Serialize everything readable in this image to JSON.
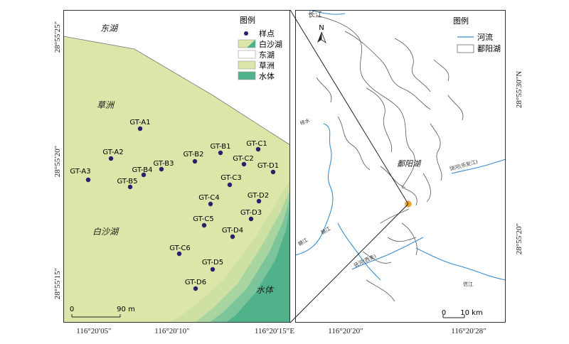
{
  "left_map": {
    "region_labels": {
      "east_lake": "东湖",
      "grass_beach": "草洲",
      "white_sand_lake": "白沙湖",
      "water_body": "水体"
    },
    "legend": {
      "title": "图例",
      "items": [
        {
          "label": "样点",
          "kind": "point",
          "color": "#2a1f6b"
        },
        {
          "label": "白沙湖",
          "kind": "swatch",
          "color": "#cfe0a3"
        },
        {
          "label": "东湖",
          "kind": "swatch",
          "color": "#ffffff"
        },
        {
          "label": "草洲",
          "kind": "swatch",
          "color": "#dbe6a8"
        },
        {
          "label": "水体",
          "kind": "swatch",
          "color": "#4fb28b"
        }
      ]
    },
    "sample_points": [
      {
        "label": "GT-A1"
      },
      {
        "label": "GT-A2"
      },
      {
        "label": "GT-A3"
      },
      {
        "label": "GT-B1"
      },
      {
        "label": "GT-B2"
      },
      {
        "label": "GT-B3"
      },
      {
        "label": "GT-B4"
      },
      {
        "label": "GT-B5"
      },
      {
        "label": "GT-C1"
      },
      {
        "label": "GT-C2"
      },
      {
        "label": "GT-C3"
      },
      {
        "label": "GT-C4"
      },
      {
        "label": "GT-C5"
      },
      {
        "label": "GT-C6"
      },
      {
        "label": "GT-D1"
      },
      {
        "label": "GT-D2"
      },
      {
        "label": "GT-D3"
      },
      {
        "label": "GT-D4"
      },
      {
        "label": "GT-D5"
      },
      {
        "label": "GT-D6"
      }
    ],
    "scale_bar": {
      "zero": "0",
      "length": "90 m"
    },
    "x_ticks": [
      "116°20′05″",
      "116°20′10″",
      "116°20′15″E"
    ],
    "y_ticks": [
      "28°55′25″",
      "28°55′20″",
      "28°55′15″"
    ]
  },
  "right_map": {
    "legend": {
      "title": "图例",
      "river": "河流",
      "lake": "鄱阳湖"
    },
    "lake_label": "鄱阳湖",
    "north": "N",
    "river_labels": [
      "长江",
      "修水",
      "赣江",
      "赣江",
      "抚河(西支)",
      "饶河(乐安江)",
      "信江"
    ],
    "scale_bar": {
      "zero": "0",
      "length": "10 km"
    },
    "x_ticks": [
      "116°20′20″",
      "116°20′28″"
    ],
    "y_ticks": [
      "28°55′30″N",
      "28°55′20″"
    ],
    "colors": {
      "river": "#3a8ed0",
      "site_marker": "#f5a623"
    }
  }
}
